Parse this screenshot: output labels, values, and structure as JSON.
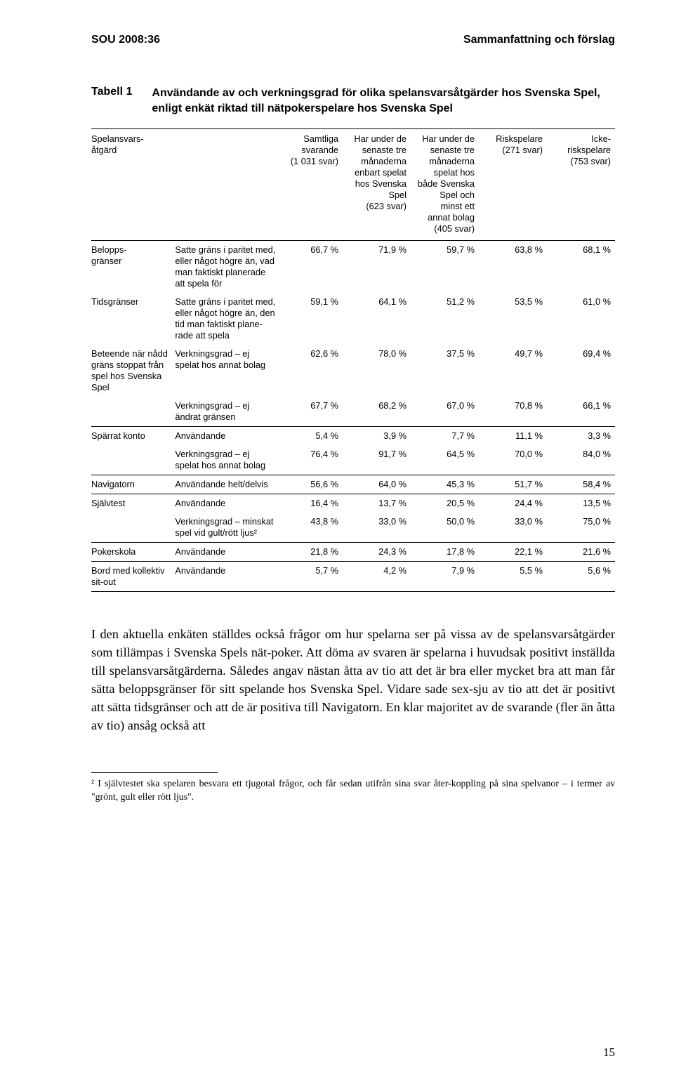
{
  "running_head": {
    "left": "SOU 2008:36",
    "right": "Sammanfattning och förslag"
  },
  "table": {
    "label": "Tabell 1",
    "title": "Användande av och verkningsgrad för olika spelansvarsåtgärder hos Svenska Spel, enligt enkät riktad till nätpokerspelare hos Svenska Spel",
    "columns": [
      "Spelansvars-\nåtgärd",
      "",
      "Samtliga\nsvarande\n(1 031 svar)",
      "Har under de\nsenaste tre\nmånaderna\nenbart spelat\nhos Svenska\nSpel\n(623 svar)",
      "Har under de\nsenaste tre\nmånaderna\nspelat hos\nbåde Svenska\nSpel och\nminst ett\nannat bolag\n(405 svar)",
      "Riskspelare\n(271 svar)",
      "Icke-\nriskspelare\n(753 svar)"
    ],
    "rows": [
      {
        "c0": "Belopps-\ngränser",
        "c1": "Satte gräns i paritet med, eller något högre än, vad man faktiskt planerade att spela för",
        "v": [
          "66,7 %",
          "71,9 %",
          "59,7 %",
          "63,8 %",
          "68,1 %"
        ],
        "last": false
      },
      {
        "c0": "Tidsgränser",
        "c1": "Satte gräns i paritet med, eller något högre än, den tid man faktiskt plane-rade att spela",
        "v": [
          "59,1 %",
          "64,1 %",
          "51,2 %",
          "53,5 %",
          "61,0 %"
        ],
        "last": false
      },
      {
        "c0": "Beteende när nådd gräns stoppat från spel hos Svenska Spel",
        "c1": "Verkningsgrad – ej spelat hos annat bolag",
        "v": [
          "62,6 %",
          "78,0 %",
          "37,5 %",
          "49,7 %",
          "69,4 %"
        ],
        "last": false
      },
      {
        "c0": "",
        "c1": "Verkningsgrad – ej ändrat gränsen",
        "v": [
          "67,7 %",
          "68,2 %",
          "67,0 %",
          "70,8 %",
          "66,1 %"
        ],
        "last": true
      },
      {
        "c0": "Spärrat konto",
        "c1": "Användande",
        "v": [
          "5,4 %",
          "3,9 %",
          "7,7 %",
          "11,1 %",
          "3,3 %"
        ],
        "last": false
      },
      {
        "c0": "",
        "c1": "Verkningsgrad – ej spelat hos annat bolag",
        "v": [
          "76,4 %",
          "91,7 %",
          "64,5 %",
          "70,0 %",
          "84,0 %"
        ],
        "last": true
      },
      {
        "c0": "Navigatorn",
        "c1": "Användande helt/delvis",
        "v": [
          "56,6 %",
          "64,0 %",
          "45,3 %",
          "51,7 %",
          "58,4 %"
        ],
        "last": true
      },
      {
        "c0": "Självtest",
        "c1": "Användande",
        "v": [
          "16,4 %",
          "13,7 %",
          "20,5 %",
          "24,4 %",
          "13,5 %"
        ],
        "last": false
      },
      {
        "c0": "",
        "c1": "Verkningsgrad – minskat spel vid gult/rött ljus²",
        "v": [
          "43,8 %",
          "33,0 %",
          "50,0 %",
          "33,0 %",
          "75,0 %"
        ],
        "last": true
      },
      {
        "c0": "Pokerskola",
        "c1": "Användande",
        "v": [
          "21,8 %",
          "24,3 %",
          "17,8 %",
          "22,1 %",
          "21,6 %"
        ],
        "last": true
      },
      {
        "c0": "Bord med kollektiv sit-out",
        "c1": "Användande",
        "v": [
          "5,7 %",
          "4,2 %",
          "7,9 %",
          "5,5 %",
          "5,6 %"
        ],
        "last": true
      }
    ]
  },
  "body_paragraph": "I den aktuella enkäten ställdes också frågor om hur spelarna ser på vissa av de spelansvarsåtgärder som tillämpas i Svenska Spels nät-poker. Att döma av svaren är spelarna i huvudsak positivt inställda till spelansvarsåtgärderna. Således angav nästan åtta av tio att det är bra eller mycket bra att man får sätta beloppsgränser för sitt spelande hos Svenska Spel. Vidare sade sex-sju av tio att det är positivt att sätta tidsgränser och att de är positiva till Navigatorn. En klar majoritet av de svarande (fler än åtta av tio) ansåg också att",
  "footnote": "² I självtestet ska spelaren besvara ett tjugotal frågor, och får sedan utifrån sina svar åter-koppling på sina spelvanor – i termer av \"grönt, gult eller rött ljus\".",
  "page_number": "15"
}
